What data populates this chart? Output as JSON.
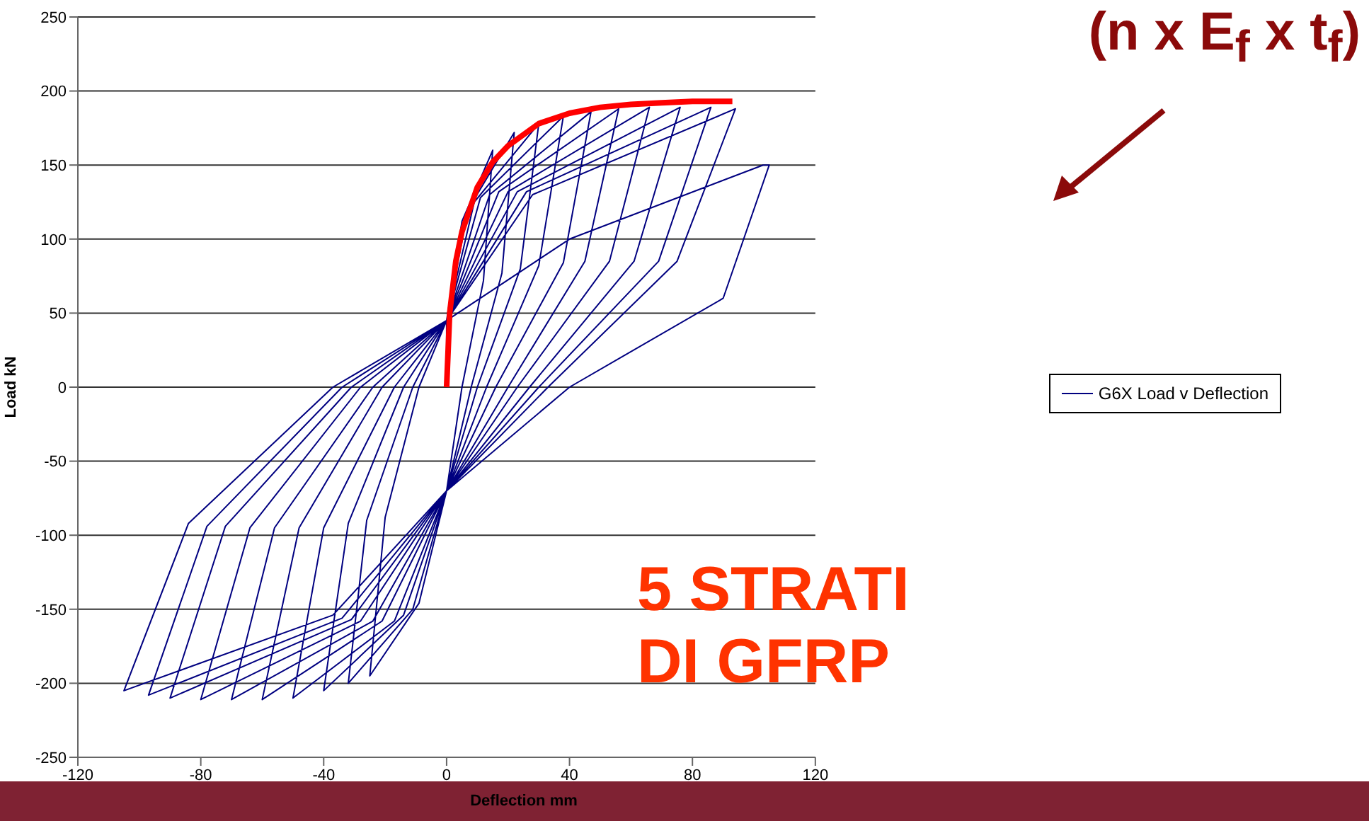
{
  "chart_data": {
    "type": "line",
    "xlabel": "Deflection mm",
    "ylabel": "Load kN",
    "xlim": [
      -120,
      120
    ],
    "xticks": [
      -120,
      -80,
      -40,
      0,
      40,
      80,
      120
    ],
    "ylim": [
      -250,
      250
    ],
    "yticks": [
      -250,
      -200,
      -150,
      -100,
      -50,
      0,
      50,
      100,
      150,
      200,
      250
    ],
    "grid": "y",
    "legend": "right",
    "line_style": "solid",
    "marker": "none",
    "annotations": [
      "(n x E$_{f}$ x t$_{f}$)",
      "5 STRATI DI GFRP"
    ],
    "series": [
      {
        "name": "G6X Load v Deflection",
        "color": "#000080",
        "x": [
          0,
          0,
          5,
          15,
          12,
          5,
          0,
          -9,
          -25,
          -20,
          -9,
          0,
          7,
          22,
          18,
          8,
          0,
          -11,
          -32,
          -26,
          -11,
          0,
          9,
          30,
          24,
          10,
          0,
          -14,
          -40,
          -32,
          -14,
          0,
          11,
          38,
          30,
          13,
          0,
          -17,
          -50,
          -40,
          -17,
          0,
          14,
          47,
          38,
          16,
          0,
          -21,
          -60,
          -48,
          -21,
          0,
          17,
          56,
          45,
          20,
          0,
          -24,
          -70,
          -56,
          -24,
          0,
          20,
          66,
          53,
          23,
          0,
          -28,
          -80,
          -64,
          -28,
          0,
          23,
          76,
          61,
          27,
          0,
          -31,
          -90,
          -72,
          -31,
          0,
          26,
          86,
          69,
          30,
          0,
          -34,
          -97,
          -78,
          -34,
          0,
          28,
          94,
          75,
          33,
          0,
          -37,
          -105,
          -84,
          -37,
          0,
          40,
          103,
          105,
          90,
          40,
          0
        ],
        "values": [
          0,
          45,
          112,
          160,
          72,
          0,
          -70,
          -146,
          -195,
          -88,
          0,
          45,
          120,
          172,
          77,
          0,
          -70,
          -150,
          -200,
          -90,
          0,
          45,
          125,
          178,
          80,
          0,
          -70,
          -154,
          -205,
          -92,
          0,
          45,
          128,
          183,
          82,
          0,
          -70,
          -158,
          -210,
          -95,
          0,
          45,
          130,
          186,
          84,
          0,
          -70,
          -158,
          -211,
          -95,
          0,
          45,
          132,
          188,
          85,
          0,
          -70,
          -158,
          -211,
          -95,
          0,
          45,
          132,
          189,
          85,
          0,
          -70,
          -158,
          -211,
          -95,
          0,
          45,
          132,
          189,
          85,
          0,
          -70,
          -157,
          -210,
          -94,
          0,
          45,
          132,
          189,
          85,
          0,
          -70,
          -156,
          -208,
          -94,
          0,
          45,
          130,
          188,
          85,
          0,
          -70,
          -154,
          -205,
          -92,
          0,
          45,
          100,
          150,
          150,
          60,
          0,
          -70
        ]
      },
      {
        "color": "#ff0000",
        "x": [
          0,
          1,
          3,
          5,
          10,
          15,
          20,
          30,
          40,
          50,
          60,
          70,
          80,
          93
        ],
        "values": [
          0,
          50,
          85,
          105,
          135,
          152,
          163,
          178,
          185,
          189,
          191,
          192,
          193,
          193
        ]
      }
    ]
  }
}
